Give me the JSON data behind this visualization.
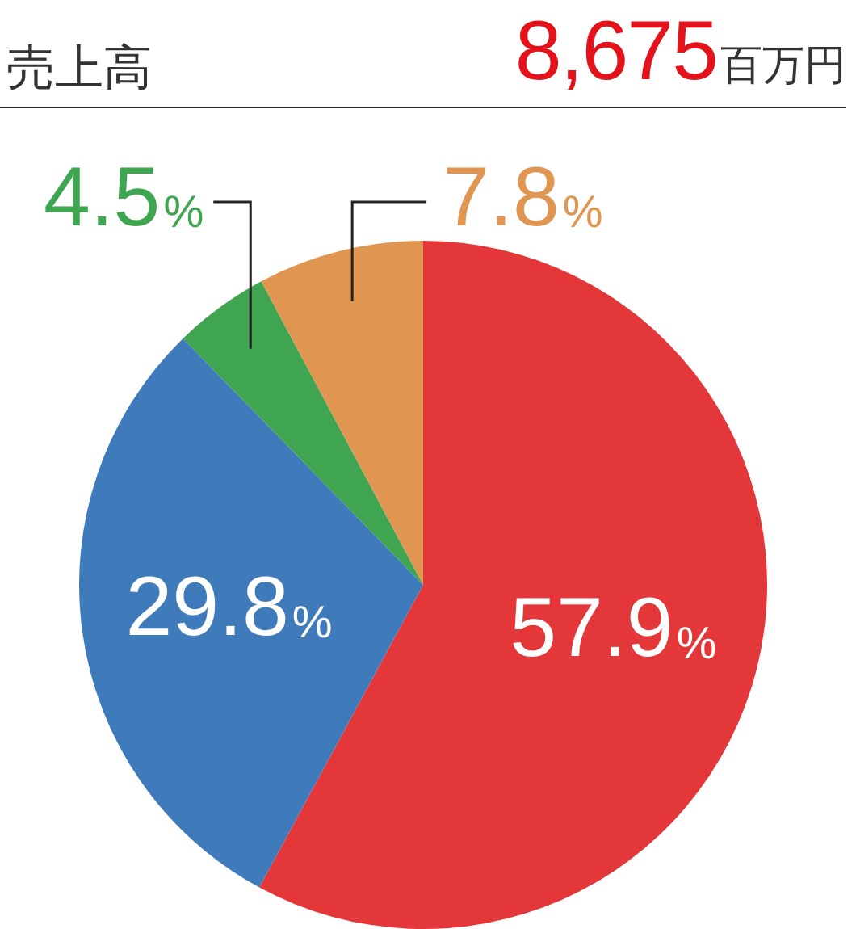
{
  "chart_data": {
    "type": "pie",
    "title": "売上高",
    "subtitle": "8,675",
    "annotations": [
      "百万円"
    ],
    "categories": [
      null,
      null,
      null,
      null
    ],
    "values": [
      57.9,
      29.8,
      4.5,
      7.8
    ],
    "colors": [
      "#e3373a",
      "#3f7abb",
      "#3fa550",
      "#e09550"
    ],
    "value_labels": [
      "57.9%",
      "29.8%",
      "4.5%",
      "7.8%"
    ],
    "legend": false
  }
}
